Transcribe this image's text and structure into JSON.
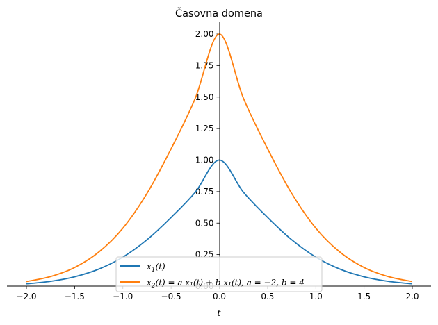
{
  "chart_data": {
    "type": "line",
    "title": "Časovna domena",
    "xlabel": "t",
    "ylabel": "",
    "xlim": [
      -2.0,
      2.0
    ],
    "ylim": [
      0.0,
      2.0
    ],
    "xticks": [
      "-2.0",
      "-1.5",
      "-1.0",
      "-0.5",
      "0.0",
      "0.5",
      "1.0",
      "1.5",
      "2.0"
    ],
    "yticks": [
      "0.00",
      "0.25",
      "0.50",
      "0.75",
      "1.00",
      "1.25",
      "1.50",
      "1.75",
      "2.00"
    ],
    "grid": false,
    "legend_position": "lower-center",
    "x": [
      -2.0,
      -1.75,
      -1.5,
      -1.25,
      -1.0,
      -0.75,
      -0.5,
      -0.25,
      0.0,
      0.25,
      0.5,
      0.75,
      1.0,
      1.25,
      1.5,
      1.75,
      2.0
    ],
    "series": [
      {
        "name": "x1",
        "label_main": "x",
        "label_sub": "1",
        "label_rest": "(t)",
        "color": "#1f77b4",
        "values": [
          0.018,
          0.038,
          0.074,
          0.135,
          0.23,
          0.368,
          0.545,
          0.745,
          1.0,
          0.745,
          0.545,
          0.368,
          0.23,
          0.135,
          0.074,
          0.038,
          0.018
        ]
      },
      {
        "name": "x2",
        "label_main": "x",
        "label_sub": "2",
        "label_rest": "(t) = a x₁(t) + b x₁(t), a = −2, b = 4",
        "color": "#ff7f0e",
        "values": [
          0.036,
          0.076,
          0.148,
          0.27,
          0.46,
          0.736,
          1.09,
          1.49,
          2.0,
          1.49,
          1.09,
          0.736,
          0.46,
          0.27,
          0.148,
          0.076,
          0.036
        ]
      }
    ]
  }
}
